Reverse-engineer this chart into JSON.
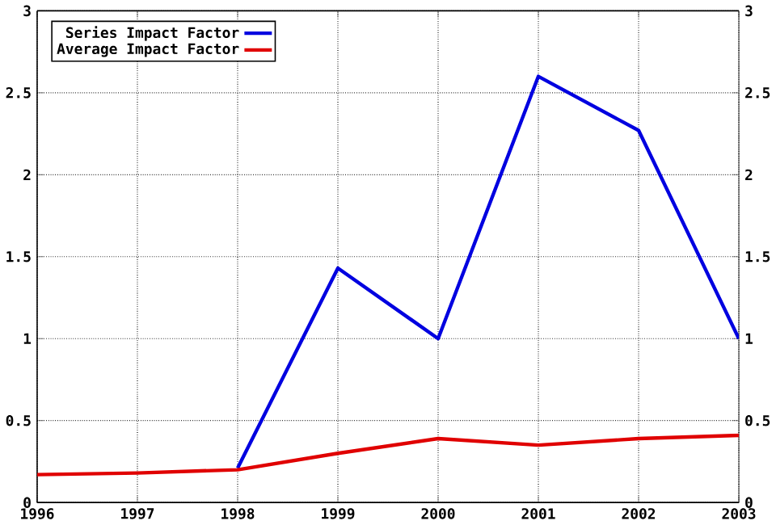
{
  "chart_data": {
    "type": "line",
    "x": [
      1996,
      1997,
      1998,
      1999,
      2000,
      2001,
      2002,
      2003
    ],
    "series": [
      {
        "name": "Series Impact Factor",
        "color": "#0000e0",
        "values": [
          null,
          null,
          0.21,
          1.43,
          1.0,
          2.6,
          2.27,
          1.0
        ]
      },
      {
        "name": "Average Impact Factor",
        "color": "#e00000",
        "values": [
          0.17,
          0.18,
          0.2,
          0.3,
          0.39,
          0.35,
          0.39,
          0.41
        ]
      }
    ],
    "xlim": [
      1996,
      2003
    ],
    "xticks": [
      1996,
      1997,
      1998,
      1999,
      2000,
      2001,
      2002,
      2003
    ],
    "ylim": [
      0,
      3
    ],
    "yticks": [
      0,
      0.5,
      1,
      1.5,
      2,
      2.5,
      3
    ],
    "y2lim": [
      0,
      3
    ],
    "y2ticks": [
      0,
      0.5,
      1,
      1.5,
      2,
      2.5,
      3
    ],
    "grid": true,
    "legend": "top left",
    "marker": "none",
    "line_style": "solid"
  }
}
